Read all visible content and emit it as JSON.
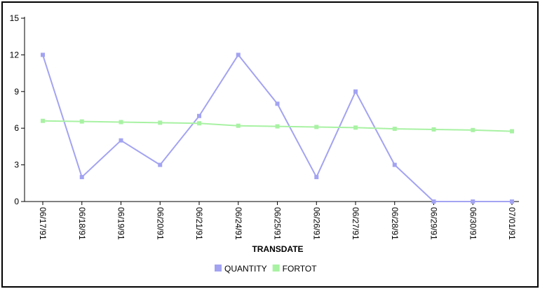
{
  "chart_data": {
    "type": "line",
    "title": "",
    "xlabel": "TRANSDATE",
    "ylabel": "",
    "categories": [
      "06/17/91",
      "06/18/91",
      "06/19/91",
      "06/20/91",
      "06/21/91",
      "06/24/91",
      "06/25/91",
      "06/26/91",
      "06/27/91",
      "06/28/91",
      "06/29/91",
      "06/30/91",
      "07/01/91"
    ],
    "ylim": [
      0,
      15
    ],
    "yticks": [
      0,
      3,
      6,
      9,
      12,
      15
    ],
    "grid": false,
    "legend_position": "bottom",
    "series": [
      {
        "name": "QUANTITY",
        "color": "#a3a3f2",
        "values": [
          12,
          2,
          5,
          3,
          7,
          12,
          8,
          2,
          9,
          3,
          0,
          0,
          0
        ]
      },
      {
        "name": "FORTOT",
        "color": "#a8f2a3",
        "values": [
          6.6,
          6.55,
          6.5,
          6.45,
          6.4,
          6.2,
          6.15,
          6.1,
          6.05,
          5.95,
          5.9,
          5.85,
          5.75
        ]
      }
    ]
  }
}
